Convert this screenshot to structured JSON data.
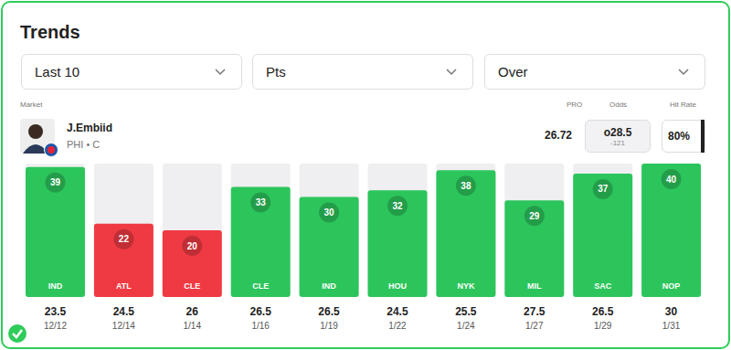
{
  "header": {
    "title": "Trends",
    "filters": [
      "Last 10",
      "Pts",
      "Over"
    ]
  },
  "market": {
    "label": "Market",
    "player": "J.Embiid",
    "team": "PHI • C",
    "columns": [
      "PRO",
      "Odds",
      "Hit Rate"
    ],
    "pro": 26.72,
    "odds_line": "o28.5",
    "odds_price": "-121",
    "hit_rate": "80%"
  },
  "chart_data": {
    "type": "bar",
    "categories": [
      "IND",
      "ATL",
      "CLE",
      "CLE",
      "IND",
      "HOU",
      "NYK",
      "MIL",
      "SAC",
      "NOP"
    ],
    "values": [
      39,
      22,
      20,
      33,
      30,
      32,
      38,
      29,
      37,
      40
    ],
    "colors": [
      "#2cc55c",
      "#f03a43",
      "#f03a43",
      "#2cc55c",
      "#2cc55c",
      "#2cc55c",
      "#2cc55c",
      "#2cc55c",
      "#2cc55c",
      "#2cc55c"
    ],
    "lines": [
      23.5,
      24.5,
      26,
      26.5,
      26.5,
      24.5,
      25.5,
      27.5,
      26.5,
      30
    ],
    "dates": [
      "12/12",
      "12/14",
      "1/14",
      "1/16",
      "1/19",
      "1/22",
      "1/24",
      "1/27",
      "1/29",
      "1/31"
    ],
    "ylim": [
      0,
      40
    ],
    "tick_labels": false,
    "data_labels": true
  }
}
